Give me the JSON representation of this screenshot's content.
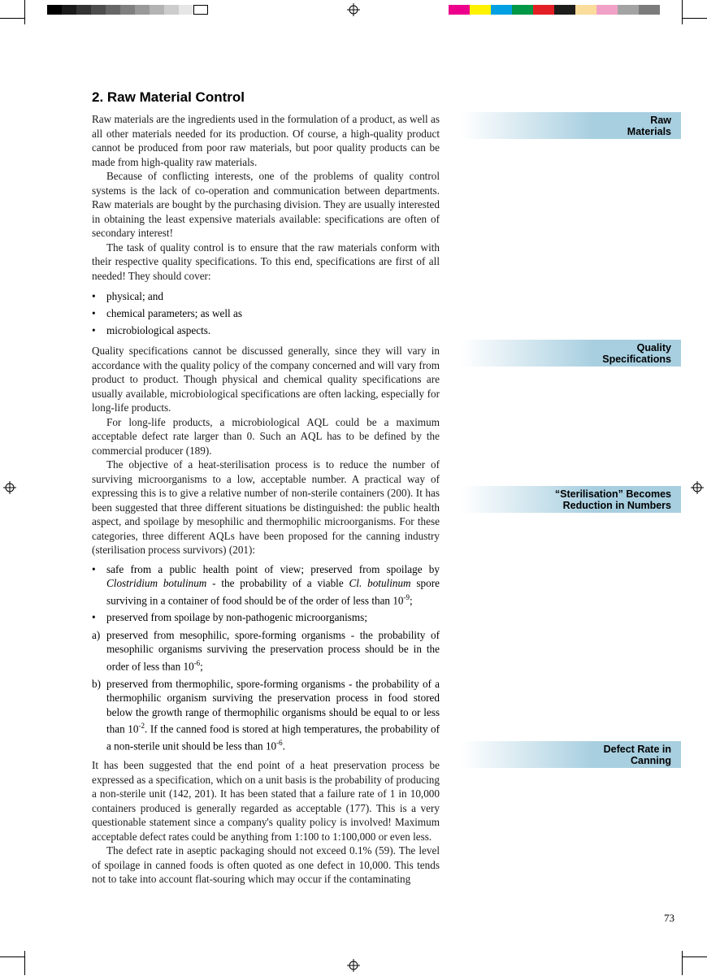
{
  "heading": "2. Raw Material Control",
  "p1": "Raw materials are the ingredients used in the formulation of a product, as well as all other materials needed for its production. Of course, a high-quality product cannot be produced from poor raw materials, but poor quality products can be made from high-quality raw materials.",
  "p2": "Because of conflicting interests, one of the problems of quality control systems is the lack of co-operation and communication between departments. Raw materials are bought by the purchasing division. They are usually interested in obtaining the least expensive materials available: specifications are often of secondary interest!",
  "p3": "The task of quality control is to ensure that the raw materials conform with their respective quality specifications. To this end, specifications are first of all needed! They should cover:",
  "b1": "physical; and",
  "b2": "chemical parameters; as well as",
  "b3": "microbiological aspects.",
  "p4": "Quality specifications cannot be discussed generally, since they will vary in accordance with the quality policy of the company concerned and will vary from product to product. Though physical and chemical quality specifications are usually available, microbiological specifications are often lacking, especially for long-life products.",
  "p5": "For long-life products, a microbiological AQL could be a maximum acceptable defect rate larger than 0. Such an AQL has to be defined by the commercial producer (189).",
  "p6a": "The objective of a heat-sterilisation process is to reduce the number of surviving microorganisms to a low, acceptable number. A practical way of expressing this is to give a relative number of non-sterile containers (200). It has been suggested that three different situations be distinguished: the public health aspect, and spoilage by mesophilic and thermophilic microorganisms. For these categories, three different AQLs have been proposed for the canning industry (sterilisation process survivors) (201):",
  "bb1a": "safe from a public health point of view; preserved from spoilage by ",
  "bb1b": "Clostridium botulinum",
  "bb1c": " - the probability of a viable ",
  "bb1d": "Cl. botulinum",
  "bb1e": " spore surviving in a container of food should be of the order of less than 10",
  "bb1f": "-9",
  "bb1g": ";",
  "bb2": "preserved from spoilage by non-pathogenic microorganisms;",
  "la_lbl": "a)",
  "la1": "preserved from mesophilic, spore-forming organisms - the probability of mesophilic organisms surviving the preservation process should be in the order of less than 10",
  "la2": "-6",
  "la3": ";",
  "lb_lbl": "b)",
  "lb1": "preserved from thermophilic, spore-forming organisms - the probability of a thermophilic organism surviving the preservation process in food stored below the growth range of thermophilic organisms should be equal to or less than 10",
  "lb2": "-2",
  "lb3": ". If the canned food is stored at high temperatures, the probability of a non-sterile unit should be less than 10",
  "lb4": "-6",
  "lb5": ".",
  "p7": "It has been suggested that the end point of a heat preservation process be expressed as a specification, which on a unit basis is the probability of producing a non-sterile unit (142, 201). It has been stated that a failure rate of 1 in 10,000 containers produced is generally regarded as acceptable (177). This is a very questionable statement since a company's quality policy is involved! Maximum acceptable defect rates could be anything from 1:100 to 1:100,000 or even less.",
  "p8": "The defect rate in aseptic packaging should not exceed 0.1% (59). The level of spoilage in canned foods is often quoted as one defect in 10,000. This tends not to take into account flat-souring which may occur if the contaminating",
  "side1": "Raw\nMaterials",
  "side2": "Quality\nSpecifications",
  "side3": "“Sterilisation” Becomes\nReduction in Numbers",
  "side4": "Defect Rate in\nCanning",
  "pagenum": "73",
  "gray_swatches": [
    "#000000",
    "#1a1a1a",
    "#333333",
    "#4d4d4d",
    "#666666",
    "#808080",
    "#999999",
    "#b3b3b3",
    "#cccccc",
    "#e6e6e6",
    "#ffffff"
  ],
  "color_swatches": [
    "#ec008c",
    "#fff200",
    "#00a0e3",
    "#009846",
    "#e31e24",
    "#1d1d1b",
    "#fadc9b",
    "#f2a1c6",
    "#a3a3a3",
    "#7c7c7c"
  ]
}
